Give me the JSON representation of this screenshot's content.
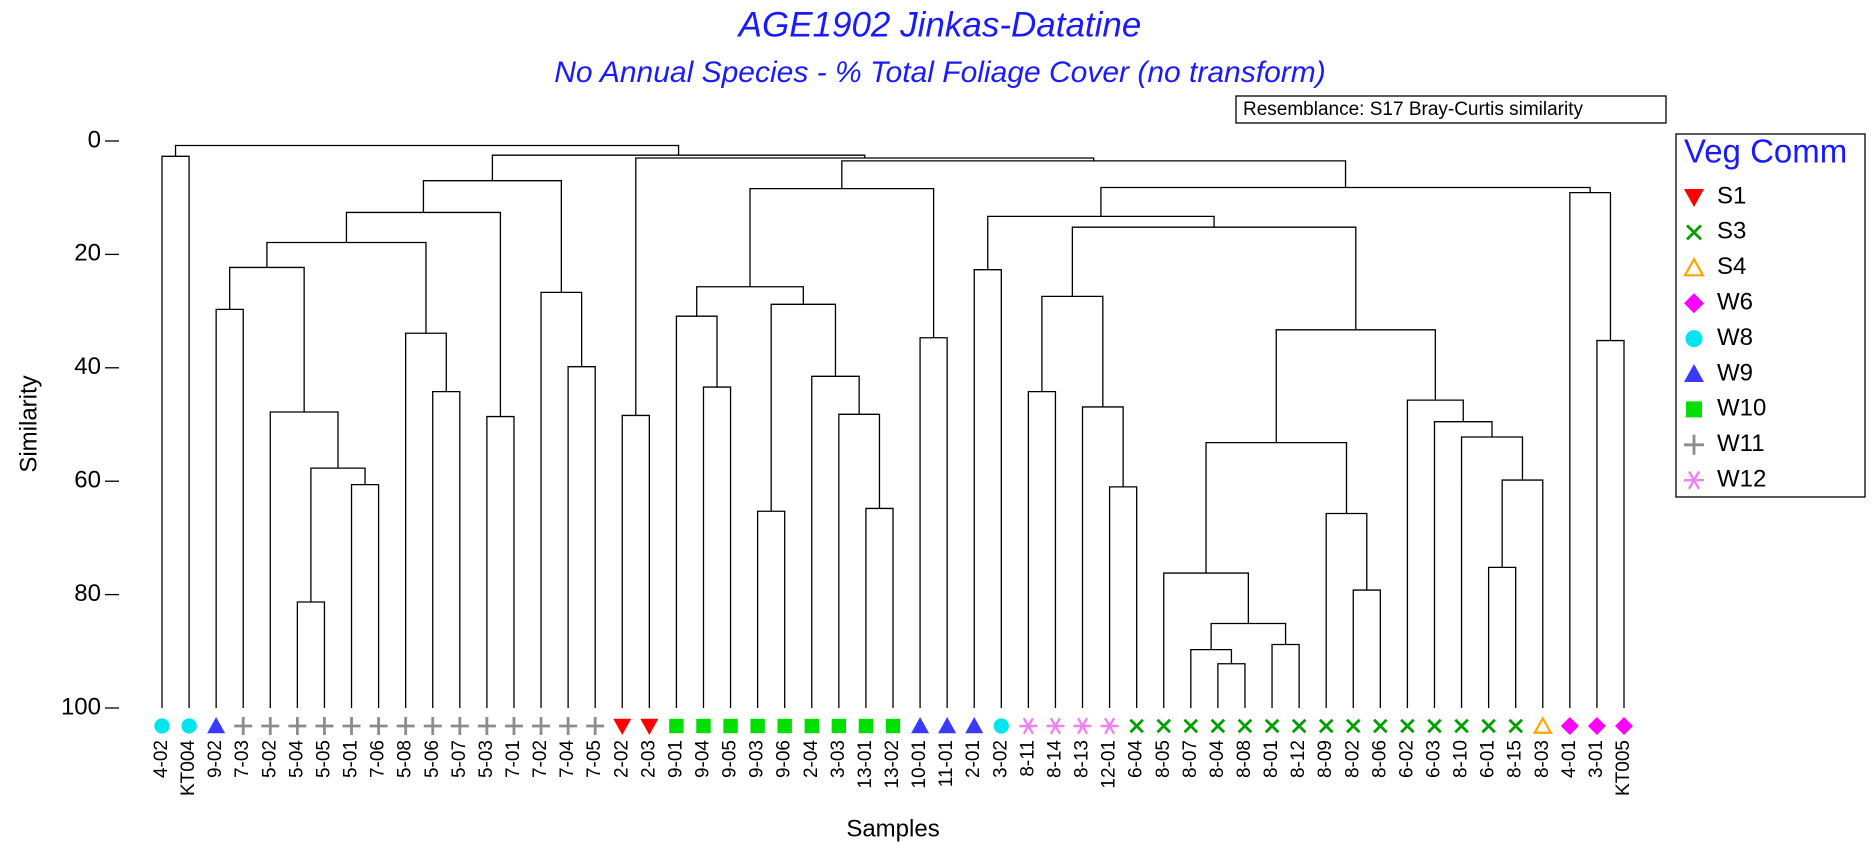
{
  "chart_data": {
    "type": "dendrogram",
    "title": "AGE1902 Jinkas-Datatine",
    "subtitle": "No Annual Species - % Total Foliage Cover (no transform)",
    "annotation": "Resemblance: S17 Bray-Curtis similarity",
    "xlabel": "Samples",
    "ylabel": "Similarity",
    "ylim": [
      0,
      100
    ],
    "yticks": [
      0,
      20,
      40,
      60,
      80,
      100
    ],
    "legend_title": "Veg Comm",
    "legend_position": "right",
    "groups": [
      {
        "name": "S1",
        "color": "#ff0000",
        "marker": "triangle-down"
      },
      {
        "name": "S3",
        "color": "#00a000",
        "marker": "x"
      },
      {
        "name": "S4",
        "color": "#ffa500",
        "marker": "triangle-open"
      },
      {
        "name": "W6",
        "color": "#ff00ff",
        "marker": "diamond"
      },
      {
        "name": "W8",
        "color": "#00e5ee",
        "marker": "circle"
      },
      {
        "name": "W9",
        "color": "#3a3aff",
        "marker": "triangle"
      },
      {
        "name": "W10",
        "color": "#00e000",
        "marker": "square"
      },
      {
        "name": "W11",
        "color": "#8c8c8c",
        "marker": "plus"
      },
      {
        "name": "W12",
        "color": "#ee82ee",
        "marker": "asterisk"
      }
    ],
    "leaves": [
      {
        "label": "4-02",
        "group": "W8"
      },
      {
        "label": "KT004",
        "group": "W8"
      },
      {
        "label": "9-02",
        "group": "W9"
      },
      {
        "label": "7-03",
        "group": "W11"
      },
      {
        "label": "5-02",
        "group": "W11"
      },
      {
        "label": "5-04",
        "group": "W11"
      },
      {
        "label": "5-05",
        "group": "W11"
      },
      {
        "label": "5-01",
        "group": "W11"
      },
      {
        "label": "7-06",
        "group": "W11"
      },
      {
        "label": "5-08",
        "group": "W11"
      },
      {
        "label": "5-06",
        "group": "W11"
      },
      {
        "label": "5-07",
        "group": "W11"
      },
      {
        "label": "5-03",
        "group": "W11"
      },
      {
        "label": "7-01",
        "group": "W11"
      },
      {
        "label": "7-02",
        "group": "W11"
      },
      {
        "label": "7-04",
        "group": "W11"
      },
      {
        "label": "7-05",
        "group": "W11"
      },
      {
        "label": "2-02",
        "group": "S1"
      },
      {
        "label": "2-03",
        "group": "S1"
      },
      {
        "label": "9-01",
        "group": "W10"
      },
      {
        "label": "9-04",
        "group": "W10"
      },
      {
        "label": "9-05",
        "group": "W10"
      },
      {
        "label": "9-03",
        "group": "W10"
      },
      {
        "label": "9-06",
        "group": "W10"
      },
      {
        "label": "2-04",
        "group": "W10"
      },
      {
        "label": "3-03",
        "group": "W10"
      },
      {
        "label": "13-01",
        "group": "W10"
      },
      {
        "label": "13-02",
        "group": "W10"
      },
      {
        "label": "10-01",
        "group": "W9"
      },
      {
        "label": "11-01",
        "group": "W9"
      },
      {
        "label": "2-01",
        "group": "W9"
      },
      {
        "label": "3-02",
        "group": "W8"
      },
      {
        "label": "8-11",
        "group": "W12"
      },
      {
        "label": "8-14",
        "group": "W12"
      },
      {
        "label": "8-13",
        "group": "W12"
      },
      {
        "label": "12-01",
        "group": "W12"
      },
      {
        "label": "6-04",
        "group": "S3"
      },
      {
        "label": "8-05",
        "group": "S3"
      },
      {
        "label": "8-07",
        "group": "S3"
      },
      {
        "label": "8-04",
        "group": "S3"
      },
      {
        "label": "8-08",
        "group": "S3"
      },
      {
        "label": "8-01",
        "group": "S3"
      },
      {
        "label": "8-12",
        "group": "S3"
      },
      {
        "label": "8-09",
        "group": "S3"
      },
      {
        "label": "8-02",
        "group": "S3"
      },
      {
        "label": "8-06",
        "group": "S3"
      },
      {
        "label": "6-02",
        "group": "S3"
      },
      {
        "label": "6-03",
        "group": "S3"
      },
      {
        "label": "8-10",
        "group": "S3"
      },
      {
        "label": "6-01",
        "group": "S3"
      },
      {
        "label": "8-15",
        "group": "S3"
      },
      {
        "label": "8-03",
        "group": "S4"
      },
      {
        "label": "4-01",
        "group": "W6"
      },
      {
        "label": "3-01",
        "group": "W6"
      },
      {
        "label": "KT005",
        "group": "W6"
      }
    ],
    "merges": [
      {
        "children": [
          0,
          1
        ],
        "similarity": 2.7
      },
      {
        "children": [
          2,
          3
        ],
        "similarity": 29.7
      },
      {
        "children": [
          5,
          6
        ],
        "similarity": 81.3
      },
      {
        "children": [
          7,
          8
        ],
        "similarity": 60.6
      },
      {
        "children": [
          57,
          58
        ],
        "similarity": 57.7
      },
      {
        "children": [
          4,
          59
        ],
        "similarity": 47.8
      },
      {
        "children": [
          56,
          60
        ],
        "similarity": 22.3
      },
      {
        "children": [
          10,
          11
        ],
        "similarity": 44.2
      },
      {
        "children": [
          9,
          62
        ],
        "similarity": 33.9
      },
      {
        "children": [
          61,
          63
        ],
        "similarity": 17.9
      },
      {
        "children": [
          12,
          13
        ],
        "similarity": 48.6
      },
      {
        "children": [
          64,
          65
        ],
        "similarity": 12.6
      },
      {
        "children": [
          15,
          16
        ],
        "similarity": 39.8
      },
      {
        "children": [
          14,
          67
        ],
        "similarity": 26.7
      },
      {
        "children": [
          66,
          68
        ],
        "similarity": 7.0
      },
      {
        "children": [
          17,
          18
        ],
        "similarity": 48.4
      },
      {
        "children": [
          20,
          21
        ],
        "similarity": 43.4
      },
      {
        "children": [
          19,
          71
        ],
        "similarity": 30.9
      },
      {
        "children": [
          22,
          23
        ],
        "similarity": 65.3
      },
      {
        "children": [
          26,
          27
        ],
        "similarity": 64.8
      },
      {
        "children": [
          25,
          74
        ],
        "similarity": 48.2
      },
      {
        "children": [
          24,
          75
        ],
        "similarity": 41.5
      },
      {
        "children": [
          73,
          76
        ],
        "similarity": 28.8
      },
      {
        "children": [
          72,
          77
        ],
        "similarity": 25.7
      },
      {
        "children": [
          28,
          29
        ],
        "similarity": 34.7
      },
      {
        "children": [
          78,
          79
        ],
        "similarity": 8.4
      },
      {
        "children": [
          30,
          31
        ],
        "similarity": 22.7
      },
      {
        "children": [
          32,
          33
        ],
        "similarity": 44.2
      },
      {
        "children": [
          35,
          36
        ],
        "similarity": 61.0
      },
      {
        "children": [
          34,
          83
        ],
        "similarity": 46.9
      },
      {
        "children": [
          82,
          84
        ],
        "similarity": 27.4
      },
      {
        "children": [
          39,
          40
        ],
        "similarity": 92.2
      },
      {
        "children": [
          38,
          86
        ],
        "similarity": 89.7
      },
      {
        "children": [
          41,
          42
        ],
        "similarity": 88.8
      },
      {
        "children": [
          87,
          88
        ],
        "similarity": 85.1
      },
      {
        "children": [
          37,
          89
        ],
        "similarity": 76.2
      },
      {
        "children": [
          44,
          45
        ],
        "similarity": 79.2
      },
      {
        "children": [
          43,
          91
        ],
        "similarity": 65.7
      },
      {
        "children": [
          90,
          92
        ],
        "similarity": 53.2
      },
      {
        "children": [
          49,
          50
        ],
        "similarity": 75.2
      },
      {
        "children": [
          94,
          51
        ],
        "similarity": 59.8
      },
      {
        "children": [
          48,
          95
        ],
        "similarity": 52.2
      },
      {
        "children": [
          47,
          96
        ],
        "similarity": 49.5
      },
      {
        "children": [
          46,
          97
        ],
        "similarity": 45.7
      },
      {
        "children": [
          93,
          98
        ],
        "similarity": 33.3
      },
      {
        "children": [
          85,
          99
        ],
        "similarity": 15.2
      },
      {
        "children": [
          81,
          100
        ],
        "similarity": 13.3
      },
      {
        "children": [
          53,
          54
        ],
        "similarity": 35.2
      },
      {
        "children": [
          52,
          102
        ],
        "similarity": 9.1
      },
      {
        "children": [
          101,
          103
        ],
        "similarity": 8.2
      },
      {
        "children": [
          80,
          104
        ],
        "similarity": 3.5
      },
      {
        "children": [
          70,
          105
        ],
        "similarity": 3.0
      },
      {
        "children": [
          69,
          106
        ],
        "similarity": 2.5
      },
      {
        "children": [
          55,
          107
        ],
        "similarity": 0.8
      }
    ]
  }
}
